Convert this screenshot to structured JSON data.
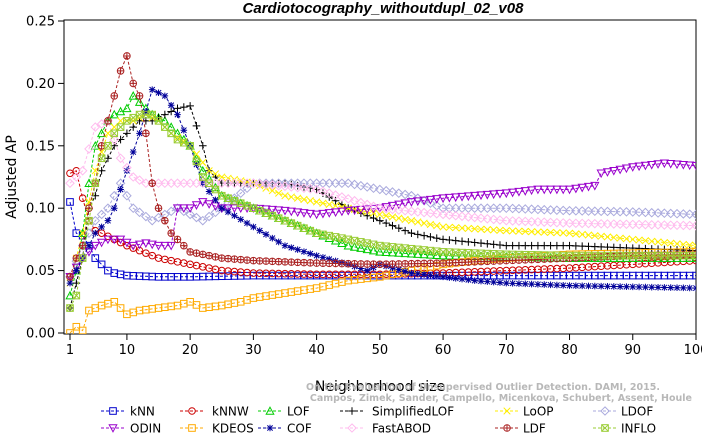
{
  "chart_data": {
    "type": "line",
    "title": "Cardiotocography_withoutdupl_02_v08",
    "xlabel": "Neighborhood size",
    "ylabel": "Adjusted AP",
    "xlim": [
      1,
      100
    ],
    "ylim": [
      0,
      0.25
    ],
    "x_ticks": [
      1,
      10,
      20,
      30,
      40,
      50,
      60,
      70,
      80,
      90,
      100
    ],
    "y_ticks": [
      "0.00",
      "0.05",
      "0.10",
      "0.15",
      "0.20",
      "0.25"
    ],
    "grid": false,
    "legend_position": "bottom",
    "watermark": {
      "line1": "Campos, Zimek, Sander, Campello, Micenkova, Schubert, Assent, Houle",
      "line2": "On the Evaluation of Unsupervised Outlier Detection. DAMI, 2015."
    },
    "series": [
      {
        "name": "kNN",
        "color": "#0000cc",
        "marker": "square",
        "points": [
          [
            1,
            0.105
          ],
          [
            2,
            0.08
          ],
          [
            3,
            0.078
          ],
          [
            4,
            0.07
          ],
          [
            5,
            0.06
          ],
          [
            6,
            0.055
          ],
          [
            7,
            0.05
          ],
          [
            8,
            0.048
          ],
          [
            10,
            0.046
          ],
          [
            15,
            0.045
          ],
          [
            20,
            0.045
          ],
          [
            30,
            0.046
          ],
          [
            40,
            0.046
          ],
          [
            50,
            0.046
          ],
          [
            60,
            0.046
          ],
          [
            70,
            0.046
          ],
          [
            80,
            0.046
          ],
          [
            90,
            0.046
          ],
          [
            100,
            0.046
          ]
        ]
      },
      {
        "name": "kNNW",
        "color": "#cc0000",
        "marker": "circle",
        "points": [
          [
            1,
            0.128
          ],
          [
            2,
            0.13
          ],
          [
            3,
            0.108
          ],
          [
            4,
            0.09
          ],
          [
            5,
            0.082
          ],
          [
            6,
            0.08
          ],
          [
            8,
            0.075
          ],
          [
            10,
            0.07
          ],
          [
            15,
            0.06
          ],
          [
            20,
            0.055
          ],
          [
            25,
            0.05
          ],
          [
            30,
            0.048
          ],
          [
            40,
            0.047
          ],
          [
            50,
            0.047
          ],
          [
            60,
            0.048
          ],
          [
            70,
            0.05
          ],
          [
            80,
            0.052
          ],
          [
            90,
            0.055
          ],
          [
            100,
            0.058
          ]
        ]
      },
      {
        "name": "LOF",
        "color": "#00cc00",
        "marker": "triangle-up",
        "points": [
          [
            1,
            0.03
          ],
          [
            2,
            0.05
          ],
          [
            3,
            0.08
          ],
          [
            4,
            0.12
          ],
          [
            5,
            0.15
          ],
          [
            6,
            0.16
          ],
          [
            7,
            0.17
          ],
          [
            8,
            0.175
          ],
          [
            10,
            0.18
          ],
          [
            11,
            0.19
          ],
          [
            12,
            0.185
          ],
          [
            13,
            0.18
          ],
          [
            14,
            0.175
          ],
          [
            16,
            0.17
          ],
          [
            18,
            0.16
          ],
          [
            20,
            0.15
          ],
          [
            22,
            0.13
          ],
          [
            25,
            0.11
          ],
          [
            30,
            0.1
          ],
          [
            35,
            0.09
          ],
          [
            40,
            0.08
          ],
          [
            45,
            0.07
          ],
          [
            50,
            0.065
          ],
          [
            60,
            0.062
          ],
          [
            70,
            0.061
          ],
          [
            80,
            0.06
          ],
          [
            90,
            0.06
          ],
          [
            100,
            0.06
          ]
        ]
      },
      {
        "name": "SimplifiedLOF",
        "color": "#000000",
        "marker": "plus",
        "points": [
          [
            1,
            0.02
          ],
          [
            2,
            0.04
          ],
          [
            3,
            0.06
          ],
          [
            4,
            0.1
          ],
          [
            5,
            0.11
          ],
          [
            6,
            0.13
          ],
          [
            7,
            0.14
          ],
          [
            8,
            0.15
          ],
          [
            10,
            0.16
          ],
          [
            12,
            0.17
          ],
          [
            14,
            0.17
          ],
          [
            16,
            0.175
          ],
          [
            18,
            0.18
          ],
          [
            20,
            0.182
          ],
          [
            22,
            0.15
          ],
          [
            23,
            0.13
          ],
          [
            25,
            0.12
          ],
          [
            30,
            0.12
          ],
          [
            35,
            0.12
          ],
          [
            40,
            0.115
          ],
          [
            45,
            0.1
          ],
          [
            50,
            0.09
          ],
          [
            55,
            0.08
          ],
          [
            60,
            0.075
          ],
          [
            70,
            0.07
          ],
          [
            80,
            0.07
          ],
          [
            90,
            0.068
          ],
          [
            100,
            0.066
          ]
        ]
      },
      {
        "name": "LoOP",
        "color": "#ffee00",
        "marker": "x",
        "points": [
          [
            1,
            0.04
          ],
          [
            3,
            0.08
          ],
          [
            5,
            0.13
          ],
          [
            7,
            0.16
          ],
          [
            9,
            0.17
          ],
          [
            11,
            0.17
          ],
          [
            13,
            0.175
          ],
          [
            15,
            0.17
          ],
          [
            17,
            0.16
          ],
          [
            20,
            0.15
          ],
          [
            23,
            0.13
          ],
          [
            25,
            0.125
          ],
          [
            30,
            0.12
          ],
          [
            35,
            0.11
          ],
          [
            40,
            0.105
          ],
          [
            45,
            0.1
          ],
          [
            50,
            0.095
          ],
          [
            55,
            0.09
          ],
          [
            60,
            0.085
          ],
          [
            70,
            0.082
          ],
          [
            80,
            0.08
          ],
          [
            90,
            0.075
          ],
          [
            100,
            0.07
          ]
        ]
      },
      {
        "name": "LDOF",
        "color": "#aaaadd",
        "marker": "diamond",
        "points": [
          [
            1,
            0.045
          ],
          [
            3,
            0.07
          ],
          [
            5,
            0.09
          ],
          [
            7,
            0.1
          ],
          [
            9,
            0.12
          ],
          [
            11,
            0.1
          ],
          [
            14,
            0.09
          ],
          [
            18,
            0.1
          ],
          [
            20,
            0.095
          ],
          [
            22,
            0.09
          ],
          [
            25,
            0.1
          ],
          [
            30,
            0.12
          ],
          [
            35,
            0.12
          ],
          [
            40,
            0.12
          ],
          [
            45,
            0.12
          ],
          [
            50,
            0.115
          ],
          [
            55,
            0.11
          ],
          [
            60,
            0.1
          ],
          [
            70,
            0.1
          ],
          [
            80,
            0.098
          ],
          [
            90,
            0.097
          ],
          [
            100,
            0.095
          ]
        ]
      },
      {
        "name": "ODIN",
        "color": "#9900cc",
        "marker": "triangle-down",
        "points": [
          [
            1,
            0.045
          ],
          [
            3,
            0.06
          ],
          [
            5,
            0.07
          ],
          [
            7,
            0.075
          ],
          [
            9,
            0.075
          ],
          [
            11,
            0.07
          ],
          [
            13,
            0.072
          ],
          [
            15,
            0.07
          ],
          [
            17,
            0.07
          ],
          [
            18,
            0.1
          ],
          [
            20,
            0.1
          ],
          [
            22,
            0.105
          ],
          [
            25,
            0.1
          ],
          [
            30,
            0.1
          ],
          [
            35,
            0.098
          ],
          [
            40,
            0.095
          ],
          [
            45,
            0.098
          ],
          [
            50,
            0.1
          ],
          [
            55,
            0.105
          ],
          [
            60,
            0.108
          ],
          [
            65,
            0.11
          ],
          [
            70,
            0.112
          ],
          [
            75,
            0.115
          ],
          [
            80,
            0.115
          ],
          [
            84,
            0.118
          ],
          [
            85,
            0.128
          ],
          [
            90,
            0.133
          ],
          [
            95,
            0.136
          ],
          [
            100,
            0.134
          ]
        ]
      },
      {
        "name": "KDEOS",
        "color": "#ffaa00",
        "marker": "square",
        "points": [
          [
            1,
            0.0
          ],
          [
            2,
            0.005
          ],
          [
            3,
            0.002
          ],
          [
            4,
            0.018
          ],
          [
            5,
            0.02
          ],
          [
            6,
            0.022
          ],
          [
            8,
            0.025
          ],
          [
            10,
            0.015
          ],
          [
            12,
            0.018
          ],
          [
            15,
            0.02
          ],
          [
            18,
            0.022
          ],
          [
            20,
            0.025
          ],
          [
            22,
            0.02
          ],
          [
            25,
            0.022
          ],
          [
            28,
            0.025
          ],
          [
            30,
            0.028
          ],
          [
            35,
            0.032
          ],
          [
            40,
            0.036
          ],
          [
            45,
            0.042
          ],
          [
            50,
            0.045
          ],
          [
            55,
            0.05
          ],
          [
            60,
            0.055
          ],
          [
            65,
            0.058
          ],
          [
            70,
            0.06
          ],
          [
            80,
            0.063
          ],
          [
            90,
            0.064
          ],
          [
            100,
            0.065
          ]
        ]
      },
      {
        "name": "COF",
        "color": "#000099",
        "marker": "star",
        "points": [
          [
            1,
            0.04
          ],
          [
            3,
            0.06
          ],
          [
            5,
            0.08
          ],
          [
            7,
            0.09
          ],
          [
            8,
            0.1
          ],
          [
            10,
            0.13
          ],
          [
            12,
            0.16
          ],
          [
            14,
            0.195
          ],
          [
            16,
            0.19
          ],
          [
            18,
            0.175
          ],
          [
            20,
            0.15
          ],
          [
            22,
            0.12
          ],
          [
            25,
            0.1
          ],
          [
            30,
            0.085
          ],
          [
            35,
            0.07
          ],
          [
            40,
            0.062
          ],
          [
            45,
            0.055
          ],
          [
            48,
            0.05
          ],
          [
            50,
            0.055
          ],
          [
            55,
            0.048
          ],
          [
            60,
            0.045
          ],
          [
            65,
            0.042
          ],
          [
            70,
            0.04
          ],
          [
            80,
            0.038
          ],
          [
            90,
            0.037
          ],
          [
            100,
            0.036
          ]
        ]
      },
      {
        "name": "FastABOD",
        "color": "#ffbbee",
        "marker": "diamond",
        "points": [
          [
            1,
            0.12
          ],
          [
            3,
            0.13
          ],
          [
            5,
            0.165
          ],
          [
            7,
            0.17
          ],
          [
            9,
            0.14
          ],
          [
            11,
            0.125
          ],
          [
            13,
            0.12
          ],
          [
            15,
            0.12
          ],
          [
            20,
            0.12
          ],
          [
            25,
            0.12
          ],
          [
            30,
            0.12
          ],
          [
            40,
            0.115
          ],
          [
            50,
            0.1
          ],
          [
            60,
            0.095
          ],
          [
            70,
            0.09
          ],
          [
            80,
            0.088
          ],
          [
            90,
            0.087
          ],
          [
            100,
            0.086
          ]
        ]
      },
      {
        "name": "LDF",
        "color": "#aa2222",
        "marker": "circle-plus",
        "points": [
          [
            1,
            0.045
          ],
          [
            2,
            0.06
          ],
          [
            3,
            0.07
          ],
          [
            4,
            0.1
          ],
          [
            5,
            0.12
          ],
          [
            6,
            0.15
          ],
          [
            7,
            0.17
          ],
          [
            8,
            0.19
          ],
          [
            9,
            0.21
          ],
          [
            10,
            0.222
          ],
          [
            11,
            0.2
          ],
          [
            12,
            0.19
          ],
          [
            13,
            0.16
          ],
          [
            14,
            0.12
          ],
          [
            15,
            0.1
          ],
          [
            17,
            0.08
          ],
          [
            20,
            0.065
          ],
          [
            25,
            0.06
          ],
          [
            30,
            0.058
          ],
          [
            40,
            0.056
          ],
          [
            50,
            0.055
          ],
          [
            60,
            0.056
          ],
          [
            70,
            0.058
          ],
          [
            80,
            0.06
          ],
          [
            90,
            0.062
          ],
          [
            100,
            0.063
          ]
        ]
      },
      {
        "name": "INFLO",
        "color": "#99cc33",
        "marker": "square-x",
        "points": [
          [
            1,
            0.02
          ],
          [
            2,
            0.03
          ],
          [
            3,
            0.06
          ],
          [
            4,
            0.09
          ],
          [
            5,
            0.12
          ],
          [
            6,
            0.14
          ],
          [
            7,
            0.15
          ],
          [
            8,
            0.16
          ],
          [
            10,
            0.17
          ],
          [
            12,
            0.175
          ],
          [
            14,
            0.175
          ],
          [
            16,
            0.165
          ],
          [
            18,
            0.155
          ],
          [
            20,
            0.15
          ],
          [
            22,
            0.125
          ],
          [
            25,
            0.11
          ],
          [
            30,
            0.1
          ],
          [
            35,
            0.09
          ],
          [
            40,
            0.08
          ],
          [
            45,
            0.075
          ],
          [
            50,
            0.07
          ],
          [
            60,
            0.065
          ],
          [
            70,
            0.063
          ],
          [
            80,
            0.062
          ],
          [
            90,
            0.062
          ],
          [
            100,
            0.062
          ]
        ]
      }
    ]
  }
}
